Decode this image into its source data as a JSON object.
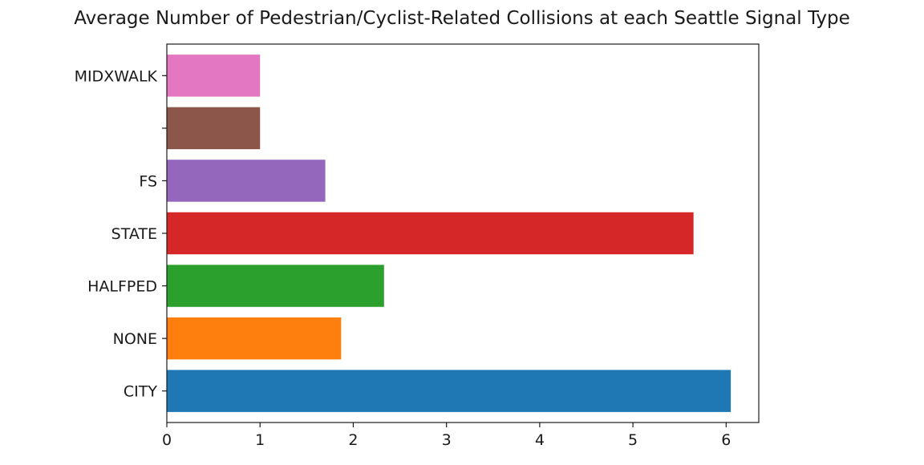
{
  "chart_data": {
    "type": "bar",
    "orientation": "horizontal",
    "title": "Average Number of Pedestrian/Cyclist-Related Collisions at each Seattle Signal Type",
    "xlabel": "",
    "ylabel": "",
    "categories": [
      "CITY",
      "NONE",
      "HALFPED",
      "STATE",
      "FS",
      "",
      "MIDXWALK"
    ],
    "values": [
      6.05,
      1.87,
      2.33,
      5.65,
      1.7,
      1.0,
      1.0
    ],
    "colors": [
      "#1f77b4",
      "#ff7f0e",
      "#2ca02c",
      "#d62728",
      "#9467bd",
      "#8c564b",
      "#e377c2"
    ],
    "xlim": [
      0,
      6.35
    ],
    "xticks": [
      "0",
      "1",
      "2",
      "3",
      "4",
      "5",
      "6"
    ],
    "grid": false,
    "legend": "none"
  }
}
